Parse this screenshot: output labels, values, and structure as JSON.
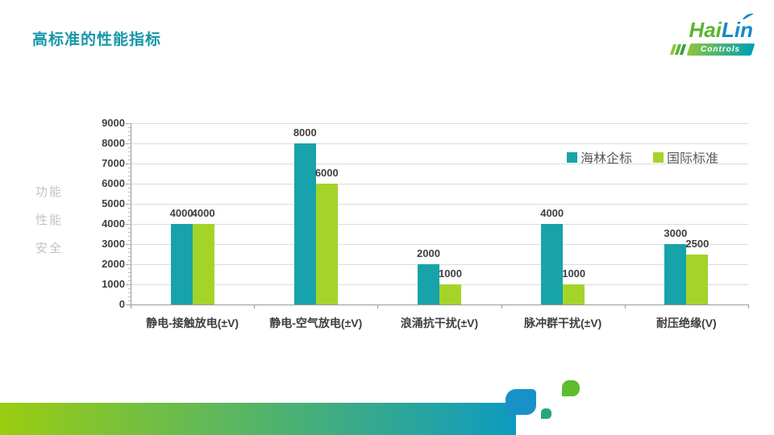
{
  "slide": {
    "title": "高标准的性能指标"
  },
  "logo": {
    "hai": "Hai",
    "lin": "Lin",
    "controls": "Controls"
  },
  "colors": {
    "title_teal": "#1697A8",
    "series_hailin": "#17A3A9",
    "series_intl": "#A4D42A",
    "footer_gradient_left": "#9BCD10",
    "footer_gradient_right": "#0D9BC0",
    "label_dark": "#3F3F3F",
    "legend_text": "#595959",
    "axis_title_gray": "#C3C3C3"
  },
  "chart_data": {
    "type": "bar",
    "title": "",
    "categories": [
      "静电-接触放电(±V)",
      "静电-空气放电(±V)",
      "浪涌抗干扰(±V)",
      "脉冲群干扰(±V)",
      "耐压绝缘(V)"
    ],
    "series": [
      {
        "name": "海林企标",
        "color": "#17A3A9",
        "values": [
          4000,
          8000,
          2000,
          4000,
          3000
        ]
      },
      {
        "name": "国际标准",
        "color": "#A4D42A",
        "values": [
          4000,
          6000,
          1000,
          1000,
          2500
        ]
      }
    ],
    "ylabel_lines": [
      "功能",
      "性能",
      "安全"
    ],
    "ylim": [
      0,
      9000
    ],
    "ytick_step": 1000,
    "grid": true,
    "data_labels": true,
    "legend_position": "top-right"
  }
}
